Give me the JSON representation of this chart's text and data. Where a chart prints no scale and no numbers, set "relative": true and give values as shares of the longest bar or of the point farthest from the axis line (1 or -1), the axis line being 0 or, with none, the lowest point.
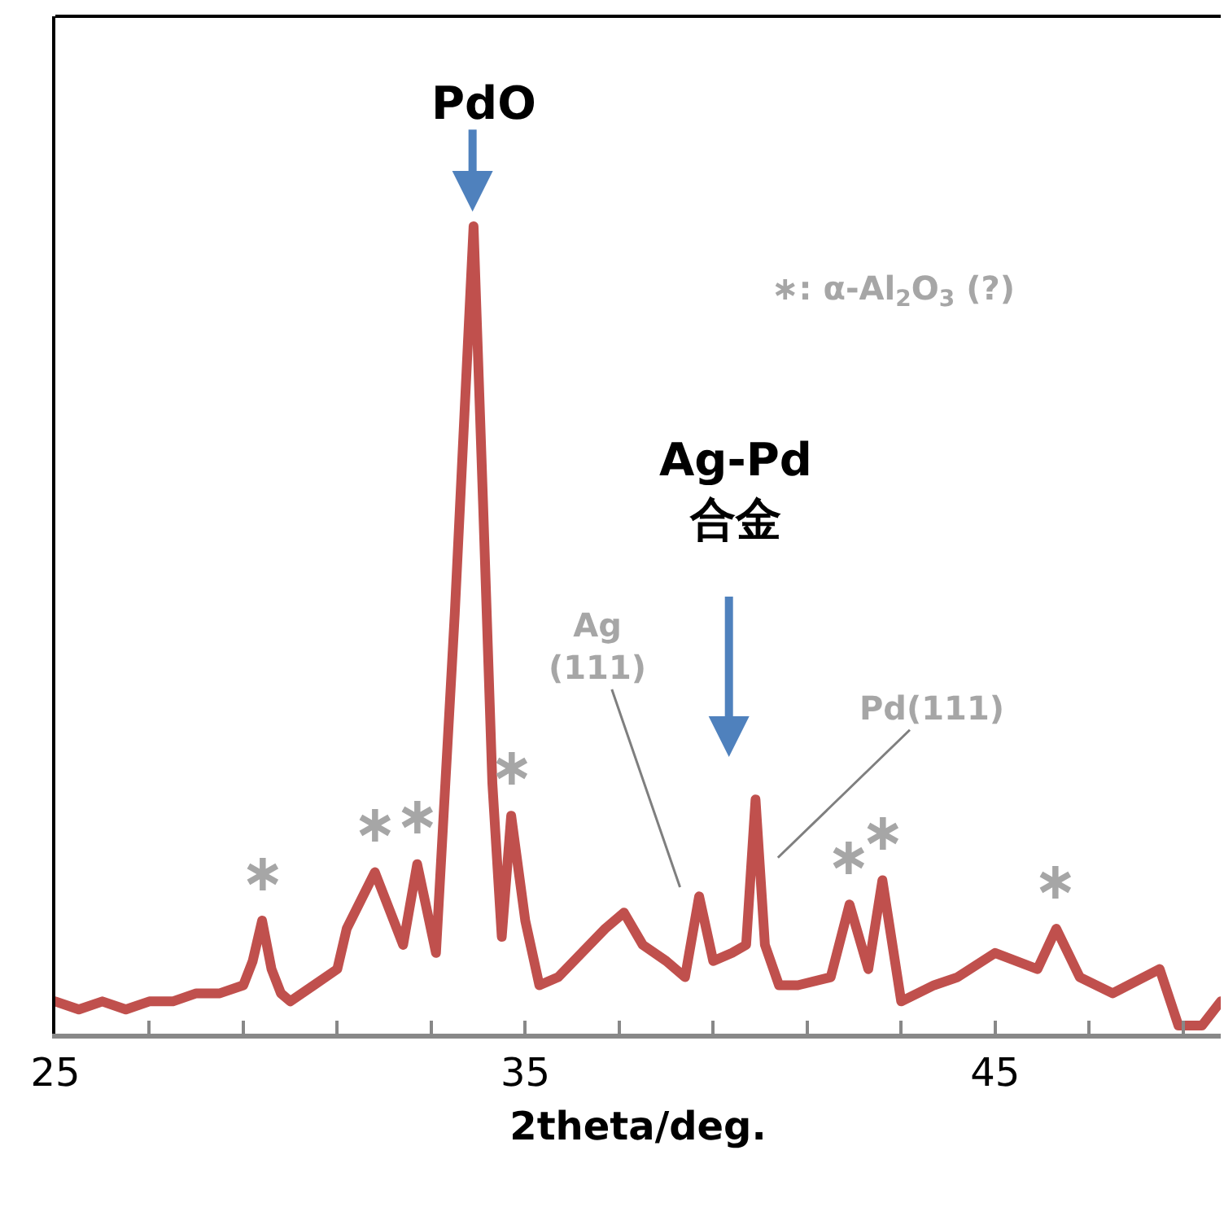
{
  "chart_data": {
    "type": "line",
    "relative": true,
    "xlabel": "2theta/deg.",
    "x": [
      25.0,
      25.5,
      26.0,
      26.5,
      27.0,
      27.5,
      28.0,
      28.5,
      29.0,
      29.2,
      29.4,
      29.6,
      29.8,
      30.0,
      30.5,
      31.0,
      31.2,
      31.8,
      32.4,
      32.7,
      33.1,
      33.5,
      33.9,
      34.1,
      34.3,
      34.5,
      34.7,
      35.0,
      35.3,
      35.7,
      36.7,
      37.1,
      37.5,
      38.0,
      38.4,
      38.7,
      39.0,
      39.4,
      39.7,
      39.9,
      40.1,
      40.4,
      40.8,
      41.5,
      41.9,
      42.3,
      42.6,
      43.0,
      43.7,
      44.2,
      45.0,
      45.9,
      46.3,
      46.8,
      47.5,
      48.5,
      48.9,
      49.4,
      49.8
    ],
    "series": [
      {
        "color": "#c0504d",
        "values": [
          0.04,
          0.03,
          0.04,
          0.03,
          0.04,
          0.04,
          0.05,
          0.05,
          0.06,
          0.09,
          0.14,
          0.08,
          0.05,
          0.04,
          0.06,
          0.08,
          0.13,
          0.2,
          0.11,
          0.21,
          0.1,
          0.52,
          1.0,
          0.66,
          0.31,
          0.12,
          0.27,
          0.14,
          0.06,
          0.07,
          0.13,
          0.15,
          0.11,
          0.09,
          0.07,
          0.17,
          0.09,
          0.1,
          0.11,
          0.29,
          0.11,
          0.06,
          0.06,
          0.07,
          0.16,
          0.08,
          0.19,
          0.04,
          0.06,
          0.07,
          0.1,
          0.08,
          0.13,
          0.07,
          0.05,
          0.08,
          0.01,
          0.01,
          0.04
        ]
      }
    ],
    "xlim": [
      25,
      49.8
    ],
    "xticks": [
      25,
      {
        "value": 27,
        "label": null
      },
      {
        "value": 29,
        "label": null
      },
      {
        "value": 31,
        "label": null
      },
      {
        "value": 33,
        "label": null
      },
      35,
      {
        "value": 37,
        "label": null
      },
      {
        "value": 39,
        "label": null
      },
      {
        "value": 41,
        "label": null
      },
      {
        "value": 43,
        "label": null
      },
      45,
      {
        "value": 47,
        "label": null
      },
      {
        "value": 49,
        "label": null
      }
    ],
    "tick_labels": "x",
    "marker": "none",
    "line_style": "solid",
    "annotations": [
      "PdO",
      "Ag-Pd\n合金",
      "Ag\n(111)",
      "Pd(111)",
      {
        "text": "∗",
        "x": 29.4,
        "y": 0.14
      },
      {
        "text": "∗",
        "x": 31.8,
        "y": 0.2
      },
      {
        "text": "∗",
        "x": 32.7,
        "y": 0.21
      },
      {
        "text": "∗",
        "x": 34.7,
        "y": 0.27
      },
      {
        "text": "∗",
        "x": 41.9,
        "y": 0.16
      },
      {
        "text": "∗",
        "x": 42.6,
        "y": 0.19
      },
      {
        "text": "∗",
        "x": 46.3,
        "y": 0.13
      },
      "∗: α-Al$_{2}$O$_{3}$ (?)"
    ]
  }
}
